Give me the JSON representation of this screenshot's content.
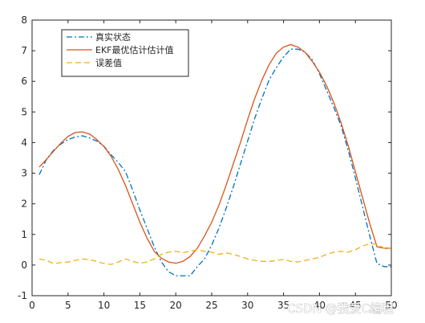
{
  "chart_data": {
    "type": "line",
    "xlim": [
      0,
      50
    ],
    "ylim": [
      -1,
      8
    ],
    "x_ticks": [
      0,
      5,
      10,
      15,
      20,
      25,
      30,
      35,
      40,
      45,
      50
    ],
    "y_ticks": [
      -1,
      0,
      1,
      2,
      3,
      4,
      5,
      6,
      7,
      8
    ],
    "grid": false,
    "legend_position": "top-left",
    "x": [
      1,
      2,
      3,
      4,
      5,
      6,
      7,
      8,
      9,
      10,
      11,
      12,
      13,
      14,
      15,
      16,
      17,
      18,
      19,
      20,
      21,
      22,
      23,
      24,
      25,
      26,
      27,
      28,
      29,
      30,
      31,
      32,
      33,
      34,
      35,
      36,
      37,
      38,
      39,
      40,
      41,
      42,
      43,
      44,
      45,
      46,
      47,
      48,
      49,
      50
    ],
    "series": [
      {
        "name": "真实状态",
        "color": "#0072BD",
        "style": "dash-dot",
        "values": [
          2.95,
          3.45,
          3.75,
          3.95,
          4.1,
          4.18,
          4.22,
          4.15,
          4.05,
          3.88,
          3.6,
          3.35,
          3.05,
          2.45,
          1.8,
          1.2,
          0.6,
          0.1,
          -0.22,
          -0.35,
          -0.35,
          -0.35,
          -0.05,
          0.2,
          0.65,
          1.2,
          1.85,
          2.55,
          3.3,
          4.05,
          4.8,
          5.45,
          6.05,
          6.45,
          6.8,
          7.05,
          7.05,
          6.95,
          6.7,
          6.25,
          5.7,
          5.15,
          4.55,
          3.75,
          2.85,
          1.9,
          0.95,
          0.05,
          -0.05,
          -0.05
        ]
      },
      {
        "name": "EKF最优估计估计值",
        "color": "#D95319",
        "style": "solid",
        "values": [
          3.2,
          3.45,
          3.72,
          3.98,
          4.2,
          4.33,
          4.35,
          4.28,
          4.1,
          3.87,
          3.55,
          3.12,
          2.6,
          2.0,
          1.4,
          0.88,
          0.45,
          0.22,
          0.1,
          0.06,
          0.12,
          0.28,
          0.55,
          0.95,
          1.4,
          1.95,
          2.6,
          3.3,
          4.0,
          4.75,
          5.45,
          6.05,
          6.55,
          6.92,
          7.12,
          7.2,
          7.12,
          6.95,
          6.65,
          6.3,
          5.85,
          5.3,
          4.65,
          3.9,
          3.05,
          2.2,
          1.35,
          0.6,
          0.55,
          0.55
        ]
      },
      {
        "name": "误差值",
        "color": "#EDB120",
        "style": "dashed",
        "values": [
          0.2,
          0.15,
          0.05,
          0.08,
          0.1,
          0.15,
          0.2,
          0.18,
          0.12,
          0.05,
          0.02,
          0.1,
          0.2,
          0.12,
          0.06,
          0.1,
          0.2,
          0.35,
          0.42,
          0.45,
          0.4,
          0.45,
          0.5,
          0.45,
          0.42,
          0.35,
          0.4,
          0.35,
          0.28,
          0.2,
          0.15,
          0.12,
          0.12,
          0.15,
          0.18,
          0.12,
          0.1,
          0.15,
          0.2,
          0.25,
          0.35,
          0.42,
          0.45,
          0.42,
          0.5,
          0.62,
          0.7,
          0.68,
          0.55,
          0.55
        ]
      }
    ]
  },
  "watermark": "CSDN @我爱C编程"
}
